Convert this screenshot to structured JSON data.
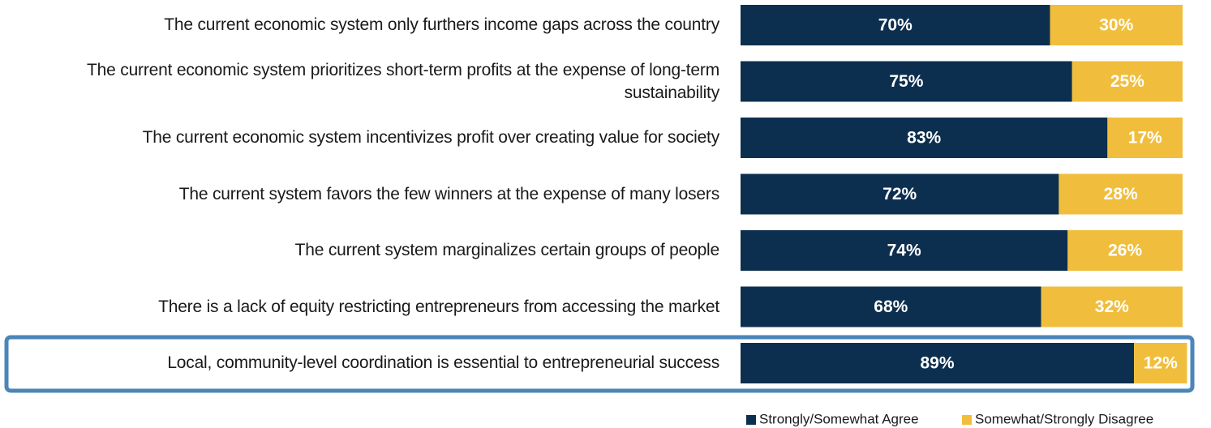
{
  "chart_data": {
    "type": "stacked-bar-horizontal",
    "categories": [
      "The current economic system only furthers income gaps across the country",
      "The current economic system prioritizes short-term profits at the expense of long-term sustainability",
      "The current economic system incentivizes profit over creating value for society",
      "The current system favors the few winners at the expense of many losers",
      "The current system marginalizes certain groups of people",
      "There is a lack of equity restricting entrepreneurs from accessing the market",
      "Local, community-level coordination is essential to entrepreneurial success"
    ],
    "series": [
      {
        "name": "Strongly/Somewhat Agree",
        "color": "#0d2f4f",
        "values": [
          70,
          75,
          83,
          72,
          74,
          68,
          89
        ],
        "value_labels": [
          "70%",
          "75%",
          "83%",
          "72%",
          "74%",
          "68%",
          "89%"
        ]
      },
      {
        "name": "Somewhat/Strongly Disagree",
        "color": "#f0be3c",
        "values": [
          30,
          25,
          17,
          28,
          26,
          32,
          12
        ],
        "value_labels": [
          "30%",
          "25%",
          "17%",
          "28%",
          "26%",
          "32%",
          "12%"
        ]
      }
    ],
    "xlim": [
      0,
      100
    ],
    "legend": "bottom-right"
  }
}
